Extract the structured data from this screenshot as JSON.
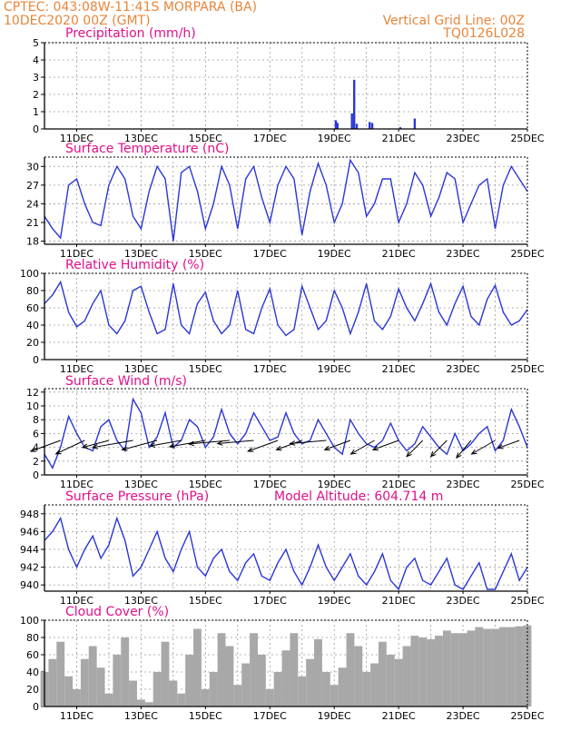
{
  "header": {
    "line1_left": "CPTEC:   043:08W-11:41S   MORPARA (BA)",
    "line2_left": "10DEC2020 00Z (GMT)",
    "line1_right": "Vertical Grid Line: 00Z",
    "line2_right": "TQ0126L028"
  },
  "x_ticks": [
    "11DEC",
    "13DEC",
    "15DEC",
    "17DEC",
    "19DEC",
    "21DEC",
    "23DEC",
    "25DEC"
  ],
  "x_tick_days": [
    1,
    3,
    5,
    7,
    9,
    11,
    13,
    15
  ],
  "colors": {
    "series": "#2a37d6",
    "cloud": "#a8a8a8",
    "header": "#e8853a",
    "title": "#e0108a"
  },
  "chart_data": [
    {
      "type": "bar",
      "title": "Precipitation (mm/h)",
      "xlabel": "",
      "ylabel": "",
      "ylim": [
        0,
        5
      ],
      "yticks": [
        0,
        1,
        2,
        3,
        4,
        5
      ],
      "x_unit": "days since 10DEC2020 00Z",
      "bars": [
        {
          "x": 9.05,
          "y": 0.5
        },
        {
          "x": 9.1,
          "y": 0.35
        },
        {
          "x": 9.55,
          "y": 0.9
        },
        {
          "x": 9.62,
          "y": 2.85
        },
        {
          "x": 9.7,
          "y": 0.3
        },
        {
          "x": 10.1,
          "y": 0.4
        },
        {
          "x": 10.18,
          "y": 0.35
        },
        {
          "x": 11.05,
          "y": 0.1
        },
        {
          "x": 11.5,
          "y": 0.6
        }
      ]
    },
    {
      "type": "line",
      "title": "Surface Temperature (nC)",
      "ylim": [
        17.5,
        31.5
      ],
      "yticks": [
        18,
        21,
        24,
        27,
        30
      ],
      "x": [
        0,
        0.25,
        0.5,
        0.75,
        1,
        1.25,
        1.5,
        1.75,
        2,
        2.25,
        2.5,
        2.75,
        3,
        3.25,
        3.5,
        3.75,
        4,
        4.25,
        4.5,
        4.75,
        5,
        5.25,
        5.5,
        5.75,
        6,
        6.25,
        6.5,
        6.75,
        7,
        7.25,
        7.5,
        7.75,
        8,
        8.25,
        8.5,
        8.75,
        9,
        9.25,
        9.5,
        9.75,
        10,
        10.25,
        10.5,
        10.75,
        11,
        11.25,
        11.5,
        11.75,
        12,
        12.25,
        12.5,
        12.75,
        13,
        13.25,
        13.5,
        13.75,
        14,
        14.25,
        14.5,
        14.75,
        15
      ],
      "y": [
        22,
        20,
        18.5,
        27,
        28,
        24,
        21,
        20.5,
        27,
        30,
        28,
        22,
        20,
        26,
        30,
        28,
        18,
        29,
        30,
        26,
        20,
        24,
        30,
        27,
        20,
        28,
        30,
        25,
        21,
        27,
        30,
        28,
        19,
        26,
        30.5,
        27,
        21,
        24,
        31,
        29,
        22,
        24,
        28,
        28,
        21,
        24,
        29,
        27,
        22,
        25,
        29,
        28,
        21,
        24,
        27,
        28,
        20,
        27,
        30,
        28,
        26
      ],
      "series_name": "Surface Temperature"
    },
    {
      "type": "line",
      "title": "Relative Humidity (%)",
      "ylim": [
        0,
        100
      ],
      "yticks": [
        0,
        20,
        40,
        60,
        80,
        100
      ],
      "x": [
        0,
        0.25,
        0.5,
        0.75,
        1,
        1.25,
        1.5,
        1.75,
        2,
        2.25,
        2.5,
        2.75,
        3,
        3.25,
        3.5,
        3.75,
        4,
        4.25,
        4.5,
        4.75,
        5,
        5.25,
        5.5,
        5.75,
        6,
        6.25,
        6.5,
        6.75,
        7,
        7.25,
        7.5,
        7.75,
        8,
        8.25,
        8.5,
        8.75,
        9,
        9.25,
        9.5,
        9.75,
        10,
        10.25,
        10.5,
        10.75,
        11,
        11.25,
        11.5,
        11.75,
        12,
        12.25,
        12.5,
        12.75,
        13,
        13.25,
        13.5,
        13.75,
        14,
        14.25,
        14.5,
        14.75,
        15
      ],
      "y": [
        65,
        75,
        90,
        55,
        38,
        45,
        65,
        80,
        40,
        30,
        45,
        80,
        85,
        55,
        30,
        35,
        88,
        40,
        30,
        65,
        78,
        45,
        30,
        40,
        80,
        35,
        30,
        60,
        82,
        40,
        28,
        35,
        85,
        60,
        35,
        45,
        80,
        60,
        30,
        55,
        88,
        45,
        35,
        50,
        82,
        60,
        45,
        65,
        88,
        55,
        40,
        65,
        85,
        50,
        40,
        70,
        86,
        55,
        40,
        45,
        58
      ],
      "series_name": "Relative Humidity"
    },
    {
      "type": "line",
      "title": "Surface Wind (m/s)",
      "ylim": [
        0,
        12.5
      ],
      "yticks": [
        0,
        2,
        4,
        6,
        8,
        10,
        12
      ],
      "x": [
        0,
        0.25,
        0.5,
        0.75,
        1,
        1.25,
        1.5,
        1.75,
        2,
        2.25,
        2.5,
        2.75,
        3,
        3.25,
        3.5,
        3.75,
        4,
        4.25,
        4.5,
        4.75,
        5,
        5.25,
        5.5,
        5.75,
        6,
        6.25,
        6.5,
        6.75,
        7,
        7.25,
        7.5,
        7.75,
        8,
        8.25,
        8.5,
        8.75,
        9,
        9.25,
        9.5,
        9.75,
        10,
        10.25,
        10.5,
        10.75,
        11,
        11.25,
        11.5,
        11.75,
        12,
        12.25,
        12.5,
        12.75,
        13,
        13.25,
        13.5,
        13.75,
        14,
        14.25,
        14.5,
        14.75,
        15
      ],
      "y": [
        3,
        1,
        4,
        8.5,
        6,
        4,
        3.5,
        7,
        8,
        5,
        3.5,
        11,
        9,
        4,
        5.5,
        9,
        4,
        5,
        8,
        7,
        4,
        5.5,
        9.5,
        6,
        4.5,
        6,
        9,
        7,
        5,
        5.5,
        9,
        6,
        4.5,
        5,
        8,
        6,
        4,
        3,
        8,
        6,
        4.5,
        4,
        5,
        7.5,
        5,
        3.5,
        4.5,
        7,
        5.5,
        4,
        3,
        6,
        3.5,
        4.5,
        6,
        7,
        3.5,
        5,
        9.5,
        7,
        4
      ],
      "series_name": "Surface Wind",
      "wind_vectors": [
        {
          "x": 0.5,
          "dir_deg": 200,
          "len": 7
        },
        {
          "x": 1.25,
          "dir_deg": 205,
          "len": 7
        },
        {
          "x": 2.0,
          "dir_deg": 195,
          "len": 6
        },
        {
          "x": 2.75,
          "dir_deg": 190,
          "len": 9
        },
        {
          "x": 3.5,
          "dir_deg": 195,
          "len": 8
        },
        {
          "x": 4.25,
          "dir_deg": 190,
          "len": 7
        },
        {
          "x": 5.0,
          "dir_deg": 190,
          "len": 8
        },
        {
          "x": 5.75,
          "dir_deg": 185,
          "len": 9
        },
        {
          "x": 6.5,
          "dir_deg": 185,
          "len": 8
        },
        {
          "x": 7.25,
          "dir_deg": 200,
          "len": 7
        },
        {
          "x": 8.0,
          "dir_deg": 200,
          "len": 6
        },
        {
          "x": 8.75,
          "dir_deg": 185,
          "len": 8
        },
        {
          "x": 9.5,
          "dir_deg": 200,
          "len": 6
        },
        {
          "x": 10.25,
          "dir_deg": 210,
          "len": 6
        },
        {
          "x": 11.0,
          "dir_deg": 200,
          "len": 6
        },
        {
          "x": 11.75,
          "dir_deg": 225,
          "len": 5
        },
        {
          "x": 12.5,
          "dir_deg": 225,
          "len": 5
        },
        {
          "x": 13.25,
          "dir_deg": 230,
          "len": 5
        },
        {
          "x": 14.0,
          "dir_deg": 210,
          "len": 6
        },
        {
          "x": 14.75,
          "dir_deg": 200,
          "len": 5
        }
      ]
    },
    {
      "type": "line",
      "title": "Surface Pressure (hPa)",
      "subtitle": "Model Altitude: 604.714 m",
      "ylim": [
        939.3,
        949
      ],
      "yticks": [
        940,
        942,
        944,
        946,
        948
      ],
      "x": [
        0,
        0.25,
        0.5,
        0.75,
        1,
        1.25,
        1.5,
        1.75,
        2,
        2.25,
        2.5,
        2.75,
        3,
        3.25,
        3.5,
        3.75,
        4,
        4.25,
        4.5,
        4.75,
        5,
        5.25,
        5.5,
        5.75,
        6,
        6.25,
        6.5,
        6.75,
        7,
        7.25,
        7.5,
        7.75,
        8,
        8.25,
        8.5,
        8.75,
        9,
        9.25,
        9.5,
        9.75,
        10,
        10.25,
        10.5,
        10.75,
        11,
        11.25,
        11.5,
        11.75,
        12,
        12.25,
        12.5,
        12.75,
        13,
        13.25,
        13.5,
        13.75,
        14,
        14.25,
        14.5,
        14.75,
        15
      ],
      "y": [
        945,
        946,
        947.5,
        944,
        942,
        944,
        945.5,
        943,
        944.5,
        947.5,
        945,
        941,
        942,
        944,
        946,
        943,
        941.5,
        944,
        946,
        942,
        941,
        943,
        944,
        941.5,
        940.5,
        942.5,
        943.5,
        941,
        940.5,
        942.5,
        944,
        941.5,
        940,
        942,
        944.5,
        942,
        940.5,
        942,
        943.5,
        941,
        940,
        941.5,
        943.5,
        940.5,
        939.5,
        942,
        943,
        940.5,
        940,
        941.5,
        943,
        940,
        939.5,
        941,
        942.5,
        939.5,
        939.5,
        941.5,
        943.5,
        940.5,
        942
      ],
      "series_name": "Surface Pressure"
    },
    {
      "type": "area",
      "title": "Cloud Cover (%)",
      "ylim": [
        0,
        100
      ],
      "yticks": [
        0,
        20,
        40,
        60,
        80,
        100
      ],
      "x": [
        0,
        0.25,
        0.5,
        0.75,
        1,
        1.25,
        1.5,
        1.75,
        2,
        2.25,
        2.5,
        2.75,
        3,
        3.25,
        3.5,
        3.75,
        4,
        4.25,
        4.5,
        4.75,
        5,
        5.25,
        5.5,
        5.75,
        6,
        6.25,
        6.5,
        6.75,
        7,
        7.25,
        7.5,
        7.75,
        8,
        8.25,
        8.5,
        8.75,
        9,
        9.25,
        9.5,
        9.75,
        10,
        10.25,
        10.5,
        10.75,
        11,
        11.25,
        11.5,
        11.75,
        12,
        12.25,
        12.5,
        12.75,
        13,
        13.25,
        13.5,
        13.75,
        14,
        14.25,
        14.5,
        14.75,
        15
      ],
      "y": [
        40,
        55,
        75,
        35,
        20,
        55,
        70,
        45,
        15,
        60,
        80,
        30,
        8,
        5,
        40,
        75,
        30,
        15,
        60,
        90,
        20,
        40,
        85,
        70,
        25,
        50,
        85,
        60,
        20,
        40,
        65,
        85,
        35,
        55,
        78,
        40,
        25,
        45,
        85,
        70,
        40,
        50,
        75,
        60,
        55,
        70,
        82,
        80,
        78,
        82,
        88,
        85,
        85,
        88,
        92,
        90,
        90,
        92,
        92,
        93,
        94
      ],
      "series_name": "Cloud Cover"
    }
  ]
}
